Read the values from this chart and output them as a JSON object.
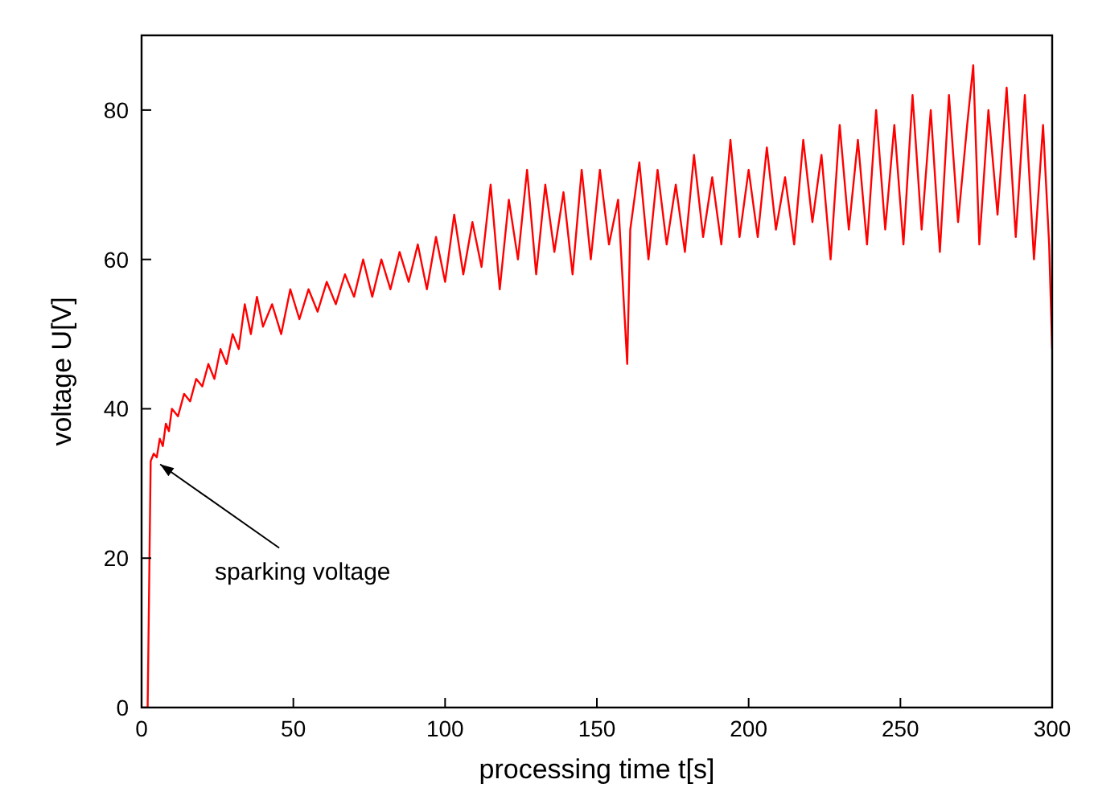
{
  "chart_data": {
    "type": "line",
    "xlabel": "processing time t[s]",
    "ylabel": "voltage U[V]",
    "xlim": [
      0,
      300
    ],
    "xticks": [
      0,
      50,
      100,
      150,
      200,
      250,
      300
    ],
    "ylim": [
      0,
      90
    ],
    "yticks": [
      0,
      20,
      40,
      60,
      80
    ],
    "grid": false,
    "line_style": "solid",
    "annotations": [
      {
        "text": "sparking voltage",
        "x": 4,
        "y": 33
      }
    ],
    "series": [
      {
        "color": "#ff0000",
        "x": [
          0,
          2,
          3,
          4,
          5,
          6,
          7,
          8,
          9,
          10,
          12,
          14,
          16,
          18,
          20,
          22,
          24,
          26,
          28,
          30,
          32,
          34,
          36,
          38,
          40,
          43,
          46,
          49,
          52,
          55,
          58,
          61,
          64,
          67,
          70,
          73,
          76,
          79,
          82,
          85,
          88,
          91,
          94,
          97,
          100,
          103,
          106,
          109,
          112,
          115,
          118,
          121,
          124,
          127,
          130,
          133,
          136,
          139,
          142,
          145,
          148,
          151,
          154,
          157,
          160,
          161,
          164,
          167,
          170,
          173,
          176,
          179,
          182,
          185,
          188,
          191,
          194,
          197,
          200,
          203,
          206,
          209,
          212,
          215,
          218,
          221,
          224,
          227,
          230,
          233,
          236,
          239,
          242,
          245,
          248,
          251,
          254,
          257,
          260,
          263,
          266,
          269,
          272,
          274,
          276,
          279,
          282,
          285,
          288,
          291,
          294,
          297,
          299,
          300
        ],
        "values": [
          0,
          0,
          33,
          34,
          33.5,
          36,
          35,
          38,
          37,
          40,
          39,
          42,
          41,
          44,
          43,
          46,
          44,
          48,
          46,
          50,
          48,
          54,
          50,
          55,
          51,
          54,
          50,
          56,
          52,
          56,
          53,
          57,
          54,
          58,
          55,
          60,
          55,
          60,
          56,
          61,
          57,
          62,
          56,
          63,
          57,
          66,
          58,
          65,
          59,
          70,
          56,
          68,
          60,
          72,
          58,
          70,
          61,
          69,
          58,
          72,
          60,
          72,
          62,
          68,
          46,
          64,
          73,
          60,
          72,
          62,
          70,
          61,
          74,
          63,
          71,
          62,
          76,
          63,
          72,
          63,
          75,
          64,
          71,
          62,
          76,
          65,
          74,
          60,
          78,
          64,
          76,
          62,
          80,
          64,
          78,
          62,
          82,
          64,
          80,
          61,
          82,
          65,
          78,
          86,
          62,
          80,
          66,
          83,
          63,
          82,
          60,
          78,
          62,
          48
        ]
      }
    ]
  }
}
